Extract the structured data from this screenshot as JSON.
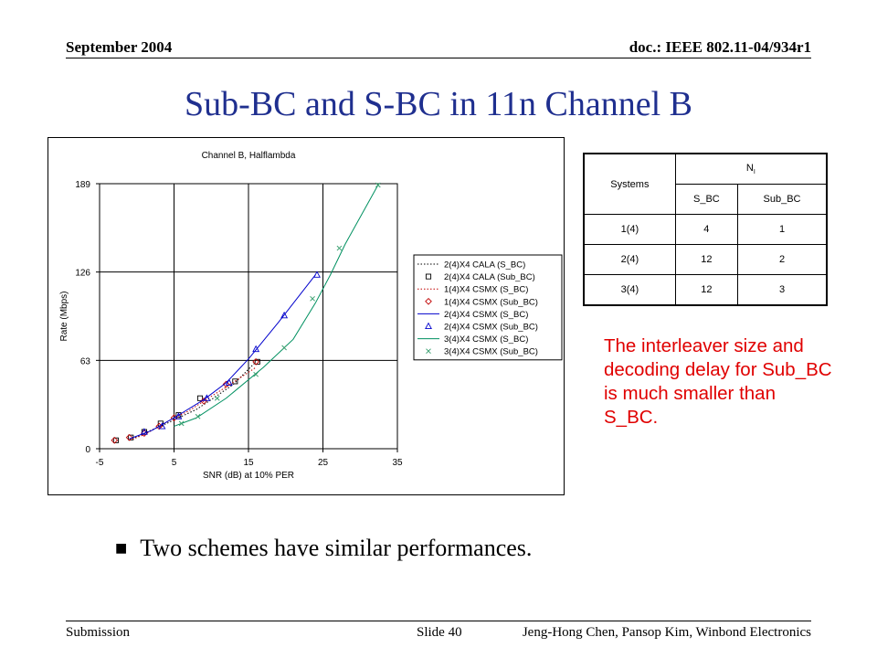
{
  "header": {
    "left": "September 2004",
    "right": "doc.: IEEE 802.11-04/934r1"
  },
  "title": "Sub-BC and S-BC in 11n Channel B",
  "note": "The interleaver size and decoding delay for Sub_BC is much smaller than S_BC.",
  "bullet": "Two schemes have similar performances.",
  "footer": {
    "left": "Submission",
    "center": "Slide 40",
    "right": "Jeng-Hong Chen, Pansop Kim, Winbond Electronics"
  },
  "table": {
    "col_systems": "Systems",
    "ni_main": "N",
    "ni_sub": "I",
    "sub_headers": [
      "S_BC",
      "Sub_BC"
    ],
    "rows": [
      {
        "system": "1(4)",
        "s_bc": "4",
        "sub_bc": "1"
      },
      {
        "system": "2(4)",
        "s_bc": "12",
        "sub_bc": "2"
      },
      {
        "system": "3(4)",
        "s_bc": "12",
        "sub_bc": "3"
      }
    ]
  },
  "chart_data": {
    "type": "line",
    "title": "Channel B, Halflambda",
    "xlabel": "SNR (dB) at 10% PER",
    "ylabel": "Rate (Mbps)",
    "xlim": [
      -5,
      35
    ],
    "ylim": [
      0,
      189
    ],
    "x_ticks": [
      -5,
      5,
      15,
      25,
      35
    ],
    "y_ticks": [
      0,
      63,
      126,
      189
    ],
    "grid": "vertical and horizontal at major ticks",
    "legend_position": "right",
    "series": [
      {
        "name": "2(4)X4 CALA (S_BC)",
        "color": "#000000",
        "style": "dotted",
        "marker": "none",
        "points": [
          [
            -1,
            6
          ],
          [
            1,
            11
          ],
          [
            4,
            18
          ],
          [
            6,
            23
          ],
          [
            8,
            28
          ],
          [
            10,
            35
          ],
          [
            13,
            46
          ],
          [
            16,
            62
          ]
        ]
      },
      {
        "name": "2(4)X4 CALA (Sub_BC)",
        "color": "#000000",
        "style": "none",
        "marker": "square",
        "points": [
          [
            -2.8,
            6
          ],
          [
            -0.8,
            8
          ],
          [
            1,
            12
          ],
          [
            3.2,
            18
          ],
          [
            5.6,
            24
          ],
          [
            8.5,
            36
          ],
          [
            13.2,
            48
          ],
          [
            16.2,
            62
          ]
        ]
      },
      {
        "name": "1(4)X4 CSMX (S_BC)",
        "color": "#c00000",
        "style": "dotted",
        "marker": "none",
        "points": [
          [
            -1,
            6
          ],
          [
            1,
            10
          ],
          [
            3,
            16
          ],
          [
            5,
            22
          ],
          [
            7,
            27
          ],
          [
            9,
            34
          ],
          [
            12,
            44
          ],
          [
            16,
            58
          ]
        ]
      },
      {
        "name": "1(4)X4 CSMX (Sub_BC)",
        "color": "#c00000",
        "style": "none",
        "marker": "diamond",
        "points": [
          [
            -3,
            6
          ],
          [
            -1,
            8
          ],
          [
            1,
            11
          ],
          [
            3,
            16
          ],
          [
            5,
            22
          ],
          [
            9,
            34
          ],
          [
            12,
            46
          ],
          [
            16,
            62
          ]
        ]
      },
      {
        "name": "2(4)X4 CSMX (S_BC)",
        "color": "#0000cc",
        "style": "solid",
        "marker": "none",
        "points": [
          [
            -1,
            7
          ],
          [
            2,
            13
          ],
          [
            5,
            22
          ],
          [
            9,
            35
          ],
          [
            12,
            47
          ],
          [
            15,
            64
          ],
          [
            19,
            90
          ],
          [
            24,
            124
          ]
        ]
      },
      {
        "name": "2(4)X4 CSMX (Sub_BC)",
        "color": "#0000cc",
        "style": "none",
        "marker": "triangle",
        "points": [
          [
            1,
            12
          ],
          [
            3.4,
            16
          ],
          [
            5.6,
            23
          ],
          [
            9.4,
            36
          ],
          [
            12.4,
            47
          ],
          [
            16,
            71
          ],
          [
            19.8,
            95
          ],
          [
            24.2,
            124
          ]
        ]
      },
      {
        "name": "3(4)X4 CSMX (S_BC)",
        "color": "#009060",
        "style": "solid",
        "marker": "none",
        "points": [
          [
            5,
            16
          ],
          [
            8,
            22
          ],
          [
            12,
            36
          ],
          [
            17,
            58
          ],
          [
            21,
            78
          ],
          [
            24,
            104
          ],
          [
            26,
            124
          ],
          [
            28,
            146
          ],
          [
            32.5,
            189
          ]
        ]
      },
      {
        "name": "3(4)X4 CSMX (Sub_BC)",
        "color": "#3aa070",
        "style": "none",
        "marker": "x",
        "points": [
          [
            6,
            18
          ],
          [
            8.2,
            23
          ],
          [
            10.8,
            36
          ],
          [
            16,
            53
          ],
          [
            19.8,
            72
          ],
          [
            23.6,
            107
          ],
          [
            27.2,
            143
          ],
          [
            32.4,
            188
          ]
        ]
      }
    ]
  }
}
